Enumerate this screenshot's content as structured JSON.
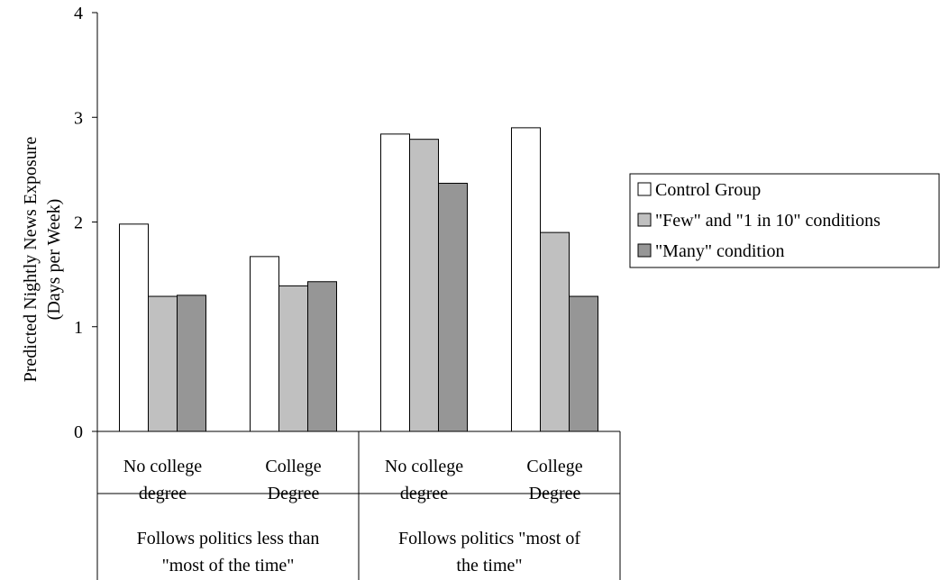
{
  "chart_data": {
    "type": "bar",
    "title": "",
    "ylabel_lines": [
      "Predicted Nightly News Exposure",
      "(Days per Week)"
    ],
    "ylim": [
      0,
      4
    ],
    "yticks": [
      0,
      1,
      2,
      3,
      4
    ],
    "grid": false,
    "legend_position": "right",
    "categories": [
      [
        "No college",
        "degree"
      ],
      [
        "College",
        "Degree"
      ],
      [
        "No college",
        "degree"
      ],
      [
        "College",
        "Degree"
      ]
    ],
    "groups": [
      [
        "Follows politics less than",
        "\"most of the time\""
      ],
      [
        "Follows politics \"most of",
        "the time\""
      ]
    ],
    "series": [
      {
        "name": "Control Group",
        "color": "#ffffff",
        "values": [
          1.98,
          1.67,
          2.84,
          2.9
        ]
      },
      {
        "name": "\"Few\" and \"1 in 10\" conditions",
        "color": "#c0c0c0",
        "values": [
          1.29,
          1.39,
          2.79,
          1.9
        ]
      },
      {
        "name": "\"Many\" condition",
        "color": "#969696",
        "values": [
          1.3,
          1.43,
          2.37,
          1.29
        ]
      }
    ]
  }
}
